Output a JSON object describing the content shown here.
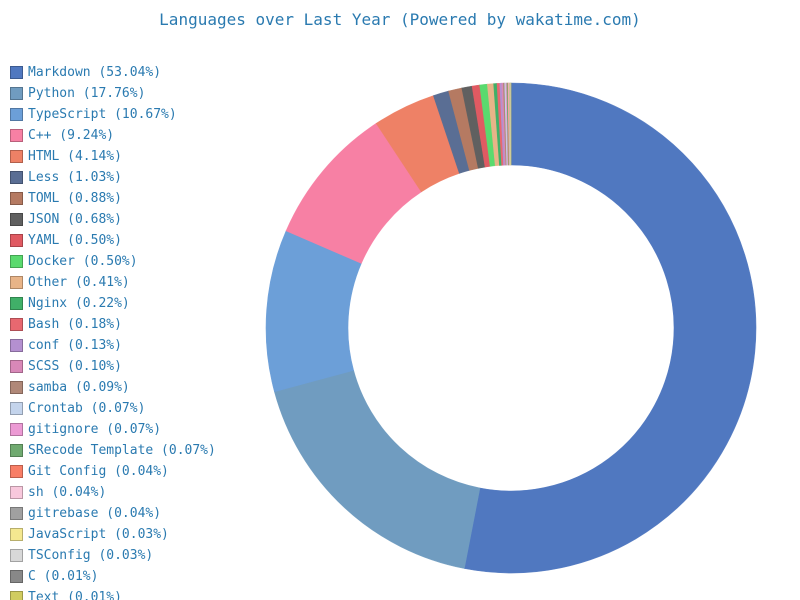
{
  "chart_data": {
    "type": "pie",
    "title": "Languages over Last Year (Powered by wakatime.com)",
    "legend_position": "left",
    "donut": true,
    "slices": [
      {
        "label": "Markdown (53.04%)",
        "name": "Markdown",
        "value": 53.04,
        "color": "#5078c0"
      },
      {
        "label": "Python (17.76%)",
        "name": "Python",
        "value": 17.76,
        "color": "#709cc0"
      },
      {
        "label": "TypeScript (10.67%)",
        "name": "TypeScript",
        "value": 10.67,
        "color": "#6c9fd8"
      },
      {
        "label": "C++ (9.24%)",
        "name": "C++",
        "value": 9.24,
        "color": "#f780a4"
      },
      {
        "label": "HTML (4.14%)",
        "name": "HTML",
        "value": 4.14,
        "color": "#ee8166"
      },
      {
        "label": "Less (1.03%)",
        "name": "Less",
        "value": 1.03,
        "color": "#5a6e94"
      },
      {
        "label": "TOML (0.88%)",
        "name": "TOML",
        "value": 0.88,
        "color": "#b57a62"
      },
      {
        "label": "JSON (0.68%)",
        "name": "JSON",
        "value": 0.68,
        "color": "#606060"
      },
      {
        "label": "YAML (0.50%)",
        "name": "YAML",
        "value": 0.5,
        "color": "#e05a62"
      },
      {
        "label": "Docker (0.50%)",
        "name": "Docker",
        "value": 0.5,
        "color": "#5ada6e"
      },
      {
        "label": "Other (0.41%)",
        "name": "Other",
        "value": 0.41,
        "color": "#e8b488"
      },
      {
        "label": "Nginx (0.22%)",
        "name": "Nginx",
        "value": 0.22,
        "color": "#40b068"
      },
      {
        "label": "Bash (0.18%)",
        "name": "Bash",
        "value": 0.18,
        "color": "#e86870"
      },
      {
        "label": "conf (0.13%)",
        "name": "conf",
        "value": 0.13,
        "color": "#b490d0"
      },
      {
        "label": "SCSS (0.10%)",
        "name": "SCSS",
        "value": 0.1,
        "color": "#d888b8"
      },
      {
        "label": "samba (0.09%)",
        "name": "samba",
        "value": 0.09,
        "color": "#b08878"
      },
      {
        "label": "Crontab (0.07%)",
        "name": "Crontab",
        "value": 0.07,
        "color": "#c4d4ec"
      },
      {
        "label": "gitignore (0.07%)",
        "name": "gitignore",
        "value": 0.07,
        "color": "#ec9ad4"
      },
      {
        "label": "SRecode Template (0.07%)",
        "name": "SRecode Template",
        "value": 0.07,
        "color": "#70aa70"
      },
      {
        "label": "Git Config (0.04%)",
        "name": "Git Config",
        "value": 0.04,
        "color": "#f87e66"
      },
      {
        "label": "sh (0.04%)",
        "name": "sh",
        "value": 0.04,
        "color": "#f8c8dc"
      },
      {
        "label": "gitrebase (0.04%)",
        "name": "gitrebase",
        "value": 0.04,
        "color": "#a0a0a0"
      },
      {
        "label": "JavaScript (0.03%)",
        "name": "JavaScript",
        "value": 0.03,
        "color": "#f4e890"
      },
      {
        "label": "TSConfig (0.03%)",
        "name": "TSConfig",
        "value": 0.03,
        "color": "#d8d8d8"
      },
      {
        "label": "C (0.01%)",
        "name": "C",
        "value": 0.01,
        "color": "#888888"
      },
      {
        "label": "Text (0.01%)",
        "name": "Text",
        "value": 0.01,
        "color": "#d0cc60"
      }
    ]
  }
}
